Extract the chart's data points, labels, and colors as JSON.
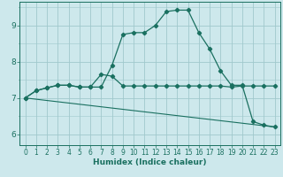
{
  "xlabel": "Humidex (Indice chaleur)",
  "bg_color": "#cde8ec",
  "grid_color": "#a0c8cc",
  "line_color": "#1a7060",
  "xlim": [
    -0.5,
    23.5
  ],
  "ylim": [
    5.7,
    9.65
  ],
  "xticks": [
    0,
    1,
    2,
    3,
    4,
    5,
    6,
    7,
    8,
    9,
    10,
    11,
    12,
    13,
    14,
    15,
    16,
    17,
    18,
    19,
    20,
    21,
    22,
    23
  ],
  "yticks": [
    6,
    7,
    8,
    9
  ],
  "line1_x": [
    0,
    1,
    2,
    3,
    4,
    5,
    6,
    7,
    8,
    9,
    10,
    11,
    12,
    13,
    14,
    15,
    16,
    17,
    18,
    19,
    20,
    21,
    22,
    23
  ],
  "line1_y": [
    7.0,
    7.2,
    7.28,
    7.35,
    7.35,
    7.3,
    7.3,
    7.3,
    7.9,
    8.75,
    8.8,
    8.8,
    9.0,
    9.38,
    9.42,
    9.42,
    8.8,
    8.35,
    7.75,
    7.35,
    7.35,
    6.35,
    6.25,
    6.2
  ],
  "line2_x": [
    0,
    1,
    2,
    3,
    4,
    5,
    6,
    7,
    8,
    9,
    10,
    11,
    12,
    13,
    14,
    15,
    16,
    17,
    18,
    19,
    20,
    21,
    22,
    23
  ],
  "line2_y": [
    7.0,
    7.2,
    7.28,
    7.35,
    7.35,
    7.3,
    7.3,
    7.65,
    7.6,
    7.33,
    7.33,
    7.33,
    7.33,
    7.33,
    7.33,
    7.33,
    7.33,
    7.33,
    7.33,
    7.3,
    7.33,
    7.33,
    7.33,
    7.33
  ],
  "line3_x": [
    0,
    23
  ],
  "line3_y": [
    7.0,
    6.2
  ],
  "markersize": 2.2,
  "xlabel_fontsize": 6.5,
  "tick_labelsize": 5.5,
  "ytick_labelsize": 6.5
}
